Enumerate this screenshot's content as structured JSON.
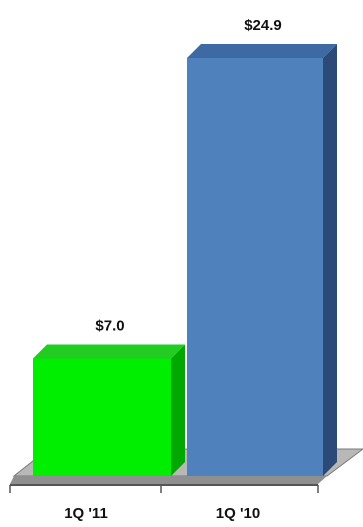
{
  "chart_data": {
    "type": "bar",
    "categories": [
      "1Q '11",
      "1Q '10"
    ],
    "values": [
      7.0,
      24.9
    ],
    "data_labels": [
      "$7.0",
      "$24.9"
    ],
    "colors": [
      "#00ee00",
      "#4f81bd"
    ],
    "side_colors": [
      "#00a800",
      "#2c4a78"
    ],
    "top_colors": [
      "#22cc22",
      "#3d6aa3"
    ],
    "title": "",
    "xlabel": "",
    "ylabel": "",
    "ylim": [
      0,
      24.9
    ],
    "grid": false,
    "legend": "none",
    "style": "3d"
  }
}
